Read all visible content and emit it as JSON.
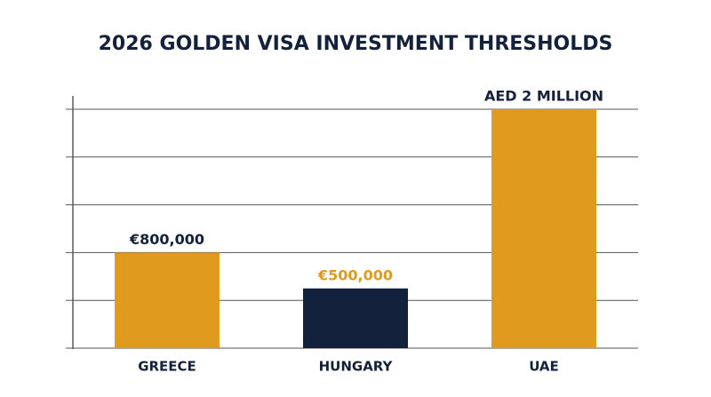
{
  "chart_data": {
    "type": "bar",
    "title": "2026 GOLDEN VISA INVESTMENT THRESHOLDS",
    "categories": [
      "GREECE",
      "HUNGARY",
      "UAE"
    ],
    "values": [
      800000,
      500000,
      2000000
    ],
    "value_labels": [
      "€800,000",
      "€500,000",
      "AED 2 MILLION"
    ],
    "colors": [
      "#e09a1e",
      "#14213d",
      "#e09a1e"
    ],
    "value_label_colors": [
      "#14213d",
      "#e09a1e",
      "#14213d"
    ],
    "ylim": [
      0,
      2000000
    ],
    "yticks": [
      0,
      400000,
      800000,
      1200000,
      1600000,
      2000000
    ],
    "grid": true
  }
}
